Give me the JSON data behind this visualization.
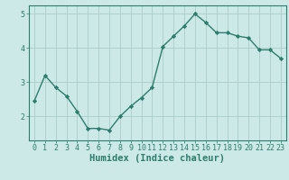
{
  "x": [
    0,
    1,
    2,
    3,
    4,
    5,
    6,
    7,
    8,
    9,
    10,
    11,
    12,
    13,
    14,
    15,
    16,
    17,
    18,
    19,
    20,
    21,
    22,
    23
  ],
  "y": [
    2.45,
    3.2,
    2.85,
    2.6,
    2.15,
    1.65,
    1.65,
    1.6,
    2.0,
    2.3,
    2.55,
    2.85,
    4.05,
    4.35,
    4.65,
    5.0,
    4.75,
    4.45,
    4.45,
    4.35,
    4.3,
    3.95,
    3.95,
    3.7
  ],
  "line_color": "#2d7d6e",
  "marker": "D",
  "marker_size": 2.2,
  "bg_color": "#cce9e7",
  "grid_color": "#b0d0cd",
  "axis_color": "#2d7d6e",
  "xlabel": "Humidex (Indice chaleur)",
  "ylim": [
    1.3,
    5.25
  ],
  "xlim": [
    -0.5,
    23.5
  ],
  "yticks": [
    2,
    3,
    4,
    5
  ],
  "xticks": [
    0,
    1,
    2,
    3,
    4,
    5,
    6,
    7,
    8,
    9,
    10,
    11,
    12,
    13,
    14,
    15,
    16,
    17,
    18,
    19,
    20,
    21,
    22,
    23
  ],
  "font_color": "#2d7d6e",
  "xlabel_fontsize": 7.5,
  "tick_fontsize": 6.0,
  "linewidth": 1.0
}
